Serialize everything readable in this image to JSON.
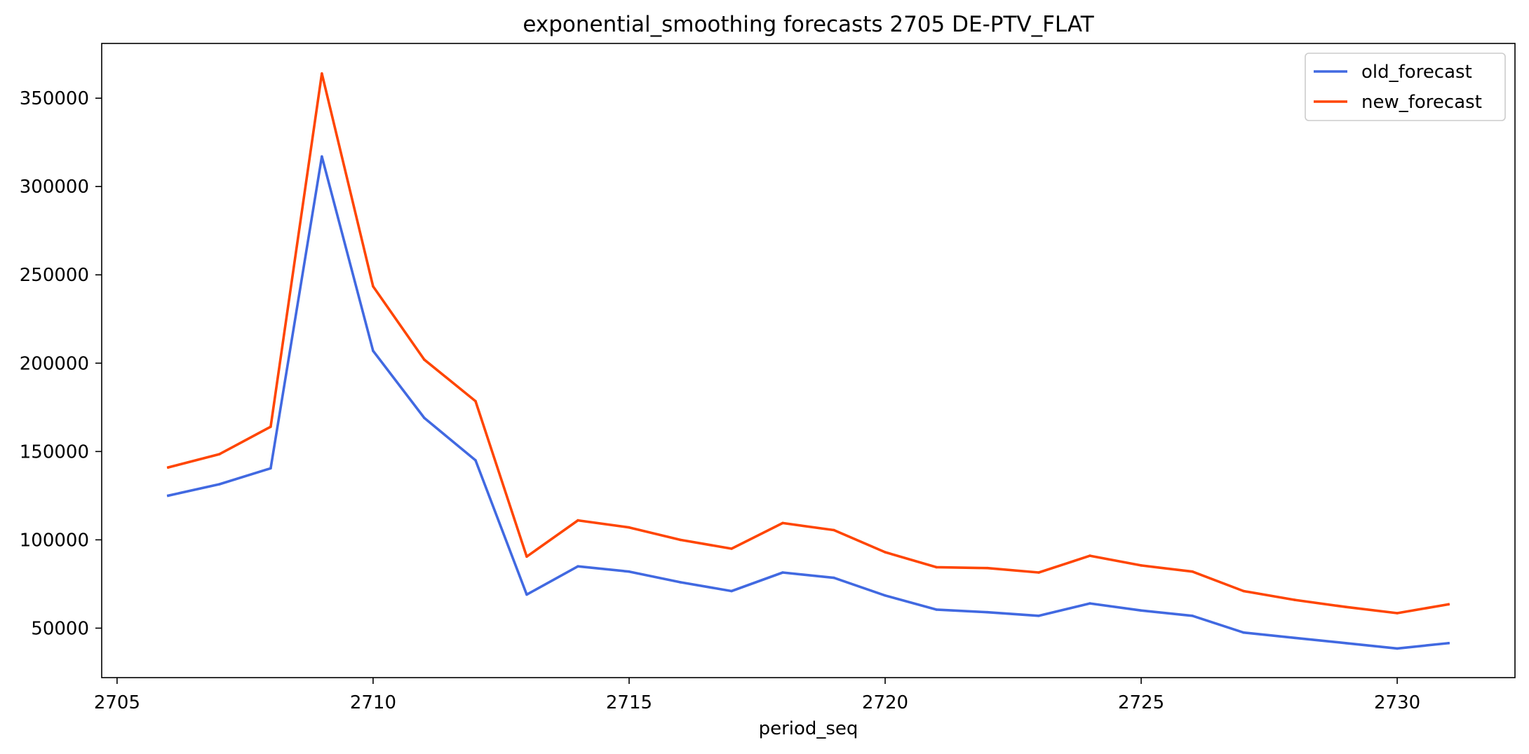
{
  "chart_data": {
    "type": "line",
    "title": "exponential_smoothing forecasts 2705 DE-PTV_FLAT",
    "xlabel": "period_seq",
    "ylabel": "",
    "xlim": [
      2704.7,
      2732.3
    ],
    "ylim": [
      22000,
      381000
    ],
    "xticks": [
      2705,
      2710,
      2715,
      2720,
      2725,
      2730
    ],
    "yticks": [
      50000,
      100000,
      150000,
      200000,
      250000,
      300000,
      350000
    ],
    "grid": false,
    "legend_position": "top-right",
    "x": [
      2706,
      2707,
      2708,
      2709,
      2710,
      2711,
      2712,
      2713,
      2714,
      2715,
      2716,
      2717,
      2718,
      2719,
      2720,
      2721,
      2722,
      2723,
      2724,
      2725,
      2726,
      2727,
      2728,
      2729,
      2730,
      2731
    ],
    "series": [
      {
        "name": "old_forecast",
        "color": "#4169e1",
        "values": [
          125000,
          131500,
          140500,
          317000,
          207000,
          169000,
          145000,
          69000,
          85000,
          82000,
          76000,
          71000,
          81500,
          78500,
          68500,
          60500,
          59000,
          57000,
          64000,
          60000,
          57000,
          47500,
          44500,
          41500,
          38500,
          41500
        ]
      },
      {
        "name": "new_forecast",
        "color": "#ff4500",
        "values": [
          141000,
          148500,
          164000,
          364000,
          243500,
          202000,
          178500,
          90500,
          111000,
          107000,
          100000,
          95000,
          109500,
          105500,
          93000,
          84500,
          84000,
          81500,
          91000,
          85500,
          82000,
          71000,
          66000,
          62000,
          58500,
          63500
        ]
      }
    ]
  }
}
